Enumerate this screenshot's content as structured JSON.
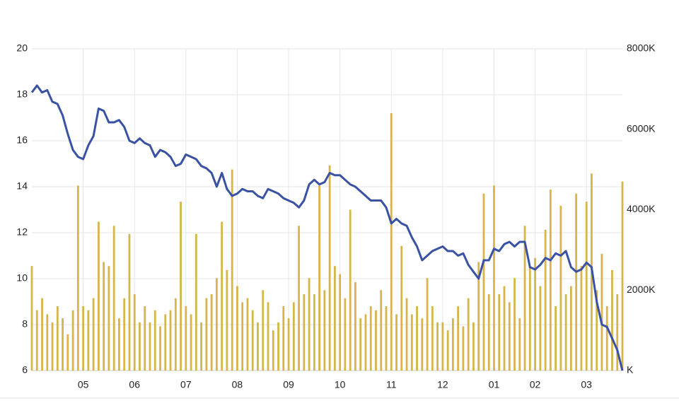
{
  "chart_data": {
    "type": "bar-line",
    "categories": [
      null,
      null,
      null,
      null,
      null,
      null,
      null,
      null,
      null,
      null,
      "05",
      null,
      null,
      null,
      null,
      null,
      null,
      null,
      null,
      null,
      "06",
      null,
      null,
      null,
      null,
      null,
      null,
      null,
      null,
      null,
      "07",
      null,
      null,
      null,
      null,
      null,
      null,
      null,
      null,
      null,
      "08",
      null,
      null,
      null,
      null,
      null,
      null,
      null,
      null,
      null,
      "09",
      null,
      null,
      null,
      null,
      null,
      null,
      null,
      null,
      null,
      "10",
      null,
      null,
      null,
      null,
      null,
      null,
      null,
      null,
      null,
      "11",
      null,
      null,
      null,
      null,
      null,
      null,
      null,
      null,
      null,
      "12",
      null,
      null,
      null,
      null,
      null,
      null,
      null,
      null,
      null,
      "01",
      null,
      null,
      null,
      null,
      null,
      null,
      null,
      "02",
      null,
      null,
      null,
      null,
      null,
      null,
      null,
      null,
      null,
      "03",
      null,
      null,
      null,
      null,
      null,
      null,
      null
    ],
    "series": [
      {
        "type": "line",
        "color": "#3a52a4",
        "values": [
          18.1,
          18.4,
          18.1,
          18.2,
          17.7,
          17.6,
          17.1,
          16.3,
          15.6,
          15.3,
          15.2,
          15.8,
          16.2,
          17.4,
          17.3,
          16.8,
          16.8,
          16.9,
          16.6,
          16.0,
          15.9,
          16.1,
          15.9,
          15.8,
          15.3,
          15.6,
          15.5,
          15.3,
          14.9,
          15.0,
          15.4,
          15.3,
          15.2,
          14.9,
          14.8,
          14.6,
          14.0,
          14.6,
          13.9,
          13.6,
          13.7,
          13.9,
          13.8,
          13.8,
          13.6,
          13.5,
          13.9,
          13.8,
          13.7,
          13.5,
          13.4,
          13.3,
          13.1,
          13.4,
          14.1,
          14.3,
          14.1,
          14.2,
          14.6,
          14.5,
          14.5,
          14.3,
          14.1,
          14.0,
          13.8,
          13.6,
          13.4,
          13.4,
          13.4,
          13.1,
          12.4,
          12.6,
          12.4,
          12.3,
          11.8,
          11.4,
          10.8,
          11.0,
          11.2,
          11.3,
          11.4,
          11.2,
          11.2,
          11.0,
          11.1,
          10.6,
          10.3,
          10.0,
          10.8,
          10.8,
          11.3,
          11.2,
          11.5,
          11.6,
          11.4,
          11.6,
          11.6,
          10.5,
          10.4,
          10.6,
          10.9,
          10.8,
          11.1,
          11.0,
          11.2,
          10.5,
          10.3,
          10.4,
          10.7,
          10.5,
          9.0,
          8.0,
          7.9,
          7.4,
          6.9,
          6.0
        ]
      },
      {
        "type": "bar",
        "axis": "y2",
        "color": "#d6b54a",
        "values": [
          2600,
          1500,
          1800,
          1400,
          1200,
          1600,
          1300,
          900,
          1500,
          4600,
          1600,
          1500,
          1800,
          3700,
          2700,
          2600,
          3600,
          1300,
          1800,
          3400,
          1900,
          1200,
          1600,
          1200,
          1500,
          1100,
          1400,
          1500,
          1800,
          4200,
          1600,
          1400,
          3400,
          1200,
          1800,
          1900,
          2300,
          3700,
          2500,
          5000,
          2100,
          1700,
          1800,
          1500,
          1200,
          2000,
          1700,
          1000,
          1200,
          1600,
          1300,
          1700,
          3600,
          1900,
          2300,
          1900,
          4600,
          2000,
          5100,
          2600,
          2400,
          1800,
          4000,
          2200,
          1300,
          1400,
          1600,
          1500,
          2000,
          1600,
          6400,
          1400,
          3100,
          1800,
          1400,
          1600,
          1300,
          2300,
          1600,
          1200,
          1200,
          1000,
          1300,
          1600,
          1100,
          1800,
          1200,
          2700,
          4400,
          1900,
          4600,
          1900,
          2100,
          1700,
          2300,
          1300,
          3600,
          2600,
          2800,
          2100,
          3500,
          4500,
          1600,
          4100,
          1900,
          2100,
          4400,
          2600,
          4200,
          4900,
          2000,
          2900,
          1600,
          2500,
          1900,
          4700
        ]
      }
    ],
    "ylim": [
      6,
      20
    ],
    "yticks": [
      6,
      8,
      10,
      12,
      14,
      16,
      18,
      20
    ],
    "y2lim": [
      0,
      8000
    ],
    "y2ticks": [
      {
        "value": 0,
        "label": "K"
      },
      {
        "value": 2000,
        "label": "2000K"
      },
      {
        "value": 4000,
        "label": "4000K"
      },
      {
        "value": 6000,
        "label": "6000K"
      },
      {
        "value": 8000,
        "label": "8000K"
      }
    ],
    "grid": true
  }
}
